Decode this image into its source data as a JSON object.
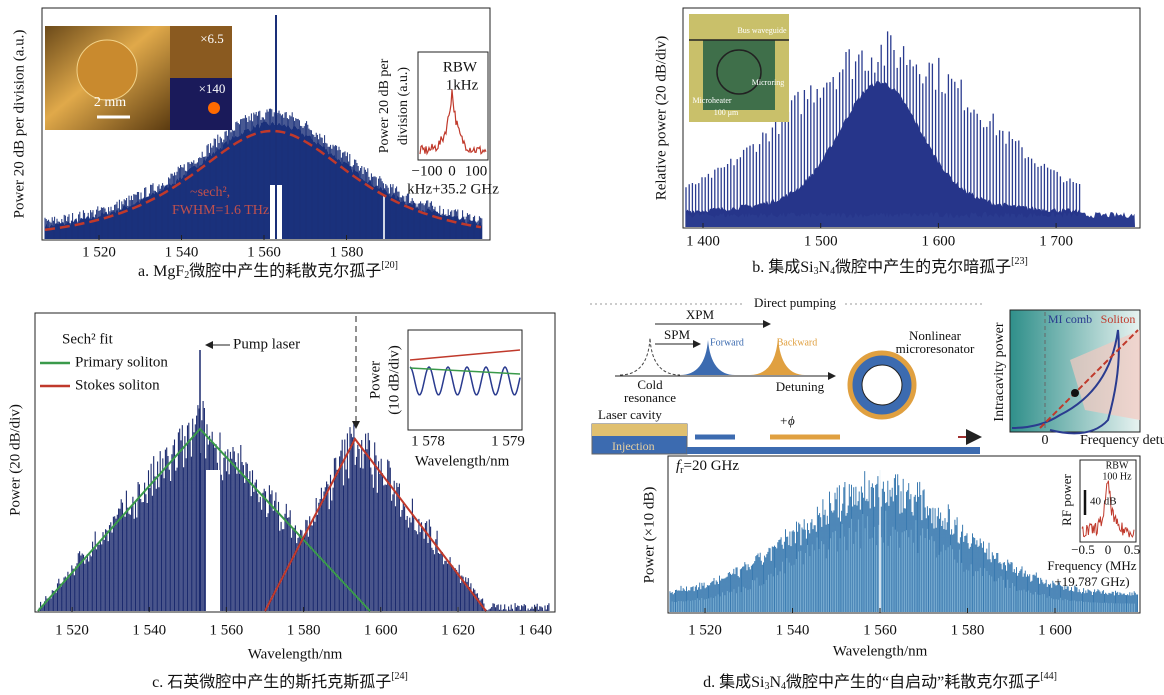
{
  "panel_a": {
    "y_label": "Power 20 dB per division (a.u.)",
    "x_ticks": [
      "1 520",
      "1 540",
      "1 560",
      "1 580"
    ],
    "fit_label": [
      "~sech²,",
      "FWHM=1.6 THz"
    ],
    "photo": {
      "scale": "2 mm",
      "zoom_1": "×6.5",
      "zoom_2": "×140"
    },
    "inset": {
      "y_label": [
        "Power 20 dB per",
        "division (a.u.)"
      ],
      "rbw": [
        "RBW",
        "1kHz"
      ],
      "x_ticks": [
        "−100",
        "0",
        "100"
      ],
      "x_label": "kHz+35.2 GHz"
    },
    "caption": {
      "prefix": "a. MgF",
      "sub": "2",
      "text": "微腔中产生的耗散克尔孤子",
      "ref": "[20]"
    }
  },
  "panel_b": {
    "y_label": "Relative power (20 dB/div)",
    "x_ticks": [
      "1 400",
      "1 500",
      "1 600",
      "1 700"
    ],
    "micrograph": {
      "bus": "Bus waveguide",
      "ring": "Microring",
      "heater": "Microheater",
      "scale": "100 μm"
    },
    "caption": {
      "prefix": "b. 集成Si",
      "sub_1": "3",
      "mid": "N",
      "sub_2": "4",
      "text": "微腔中产生的克尔暗孤子",
      "ref": "[23]"
    }
  },
  "panel_c": {
    "y_label": "Power (20 dB/div)",
    "x_label": "Wavelength/nm",
    "x_ticks": [
      "1 520",
      "1 540",
      "1 560",
      "1 580",
      "1 600",
      "1 620",
      "1 640"
    ],
    "legend": {
      "fit": "Sech² fit",
      "primary": "Primary soliton",
      "stokes": "Stokes soliton"
    },
    "pump": "Pump laser",
    "inset": {
      "y_label": [
        "Power",
        "(10 dB/div)"
      ],
      "x_ticks": [
        "1 578",
        "1 579"
      ],
      "x_label": "Wavelength/nm"
    },
    "caption": {
      "prefix": "c. 石英微腔中产生的斯托克斯孤子",
      "ref": "[24]"
    }
  },
  "panel_d": {
    "scheme": {
      "title": "Direct pumping",
      "xpm": "XPM",
      "spm": "SPM",
      "forward": "Forward",
      "backward": "Backward",
      "cold": [
        "Cold",
        "resonance"
      ],
      "detuning": "Detuning",
      "resonator": [
        "Nonlinear",
        "microresonator"
      ],
      "cavity": "Laser cavity",
      "injection": "Injection",
      "phase": "+ϕ"
    },
    "bistability": {
      "mi": "MI comb",
      "soliton": "Soliton",
      "y_label": "Intracavity power",
      "zero": "0",
      "x_label": "Frequency detuning, δω"
    },
    "spectrum": {
      "rep_rate": {
        "f": "f",
        "sub": "r",
        "text": "=20 GHz"
      },
      "y_label": "Power (×10 dB)",
      "x_label": "Wavelength/nm",
      "x_ticks": [
        "1 520",
        "1 540",
        "1 560",
        "1 580",
        "1 600"
      ],
      "inset": {
        "y_label": "RF power",
        "rbw": [
          "RBW",
          "100 Hz"
        ],
        "scale": "40 dB",
        "x_ticks": [
          "−0.5",
          "0",
          "0.5"
        ],
        "x_label": [
          "Frequency (MHz",
          "+19.787 GHz)"
        ]
      }
    },
    "caption": {
      "prefix": "d. 集成Si",
      "sub_1": "3",
      "mid": "N",
      "sub_2": "4",
      "text": "微腔中产生的“自启动”耗散克尔孤子",
      "ref": "[44]"
    }
  }
}
